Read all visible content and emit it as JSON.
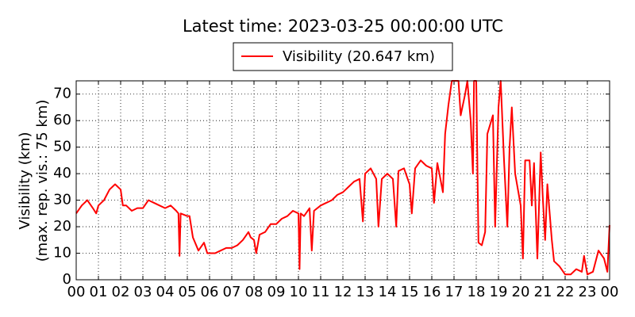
{
  "chart_data": {
    "type": "line",
    "title": "Latest time: 2023-03-25 00:00:00 UTC",
    "ylabel": [
      "Visibility (km)",
      "(max. rep. vis.: 75 km)"
    ],
    "grid": true,
    "legend": "top",
    "x": [
      0,
      0.25,
      0.5,
      0.75,
      0.9,
      1.0,
      1.25,
      1.5,
      1.75,
      2.0,
      2.1,
      2.25,
      2.5,
      2.75,
      3.0,
      3.25,
      3.5,
      3.75,
      4.0,
      4.25,
      4.5,
      4.6,
      4.65,
      4.7,
      5.0,
      5.1,
      5.25,
      5.5,
      5.75,
      5.9,
      6.0,
      6.25,
      6.5,
      6.75,
      7.0,
      7.25,
      7.5,
      7.75,
      7.85,
      8.0,
      8.1,
      8.25,
      8.5,
      8.75,
      9.0,
      9.25,
      9.5,
      9.75,
      10.0,
      10.05,
      10.1,
      10.25,
      10.5,
      10.6,
      10.7,
      11.0,
      11.25,
      11.5,
      11.75,
      12.0,
      12.25,
      12.5,
      12.75,
      12.9,
      13.0,
      13.25,
      13.5,
      13.6,
      13.75,
      14.0,
      14.25,
      14.4,
      14.5,
      14.75,
      15.0,
      15.1,
      15.25,
      15.5,
      15.75,
      16.0,
      16.1,
      16.25,
      16.5,
      16.6,
      16.75,
      16.9,
      17.2,
      17.3,
      17.5,
      17.6,
      17.75,
      17.85,
      17.9,
      18.0,
      18.1,
      18.25,
      18.4,
      18.5,
      18.75,
      18.85,
      19.0,
      19.1,
      19.25,
      19.4,
      19.5,
      19.6,
      19.75,
      20.0,
      20.1,
      20.2,
      20.4,
      20.5,
      20.6,
      20.75,
      20.9,
      21.0,
      21.1,
      21.2,
      21.4,
      21.5,
      21.75,
      22.0,
      22.25,
      22.5,
      22.75,
      22.85,
      23.0,
      23.25,
      23.5,
      23.75,
      23.9,
      24.0
    ],
    "series": [
      {
        "name": "Visibility (20.647 km)",
        "color": "#ff0000",
        "values": [
          25,
          28,
          30,
          27,
          25,
          28,
          30,
          34,
          36,
          34,
          28,
          28,
          26,
          27,
          27,
          30,
          29,
          28,
          27,
          28,
          26,
          25,
          9,
          25,
          24,
          24,
          16,
          11,
          14,
          10,
          10,
          10,
          11,
          12,
          12,
          13,
          15,
          18,
          16,
          15,
          10,
          17,
          18,
          21,
          21,
          23,
          24,
          26,
          25,
          4,
          25,
          24,
          27,
          11,
          26,
          28,
          29,
          30,
          32,
          33,
          35,
          37,
          38,
          22,
          40,
          42,
          38,
          20,
          38,
          40,
          38,
          20,
          41,
          42,
          36,
          25,
          42,
          45,
          43,
          42,
          29,
          44,
          33,
          55,
          66,
          75,
          75,
          62,
          70,
          75,
          60,
          40,
          75,
          75,
          14,
          13,
          18,
          55,
          62,
          20,
          65,
          75,
          45,
          20,
          50,
          65,
          40,
          28,
          8,
          45,
          45,
          28,
          44,
          8,
          48,
          30,
          15,
          36,
          15,
          7,
          5,
          2,
          2,
          4,
          3,
          9,
          2,
          3,
          11,
          8,
          3,
          20.647
        ]
      }
    ],
    "xlim": [
      0,
      24
    ],
    "xticks": [
      {
        "value": 0,
        "label": "00"
      },
      {
        "value": 1,
        "label": "01"
      },
      {
        "value": 2,
        "label": "02"
      },
      {
        "value": 3,
        "label": "03"
      },
      {
        "value": 4,
        "label": "04"
      },
      {
        "value": 5,
        "label": "05"
      },
      {
        "value": 6,
        "label": "06"
      },
      {
        "value": 7,
        "label": "07"
      },
      {
        "value": 8,
        "label": "08"
      },
      {
        "value": 9,
        "label": "09"
      },
      {
        "value": 10,
        "label": "10"
      },
      {
        "value": 11,
        "label": "11"
      },
      {
        "value": 12,
        "label": "12"
      },
      {
        "value": 13,
        "label": "13"
      },
      {
        "value": 14,
        "label": "14"
      },
      {
        "value": 15,
        "label": "15"
      },
      {
        "value": 16,
        "label": "16"
      },
      {
        "value": 17,
        "label": "17"
      },
      {
        "value": 18,
        "label": "18"
      },
      {
        "value": 19,
        "label": "19"
      },
      {
        "value": 20,
        "label": "20"
      },
      {
        "value": 21,
        "label": "21"
      },
      {
        "value": 22,
        "label": "22"
      },
      {
        "value": 23,
        "label": "23"
      },
      {
        "value": 24,
        "label": "00"
      }
    ],
    "ylim": [
      0,
      75
    ],
    "yticks": [
      0,
      10,
      20,
      30,
      40,
      50,
      60,
      70
    ]
  }
}
